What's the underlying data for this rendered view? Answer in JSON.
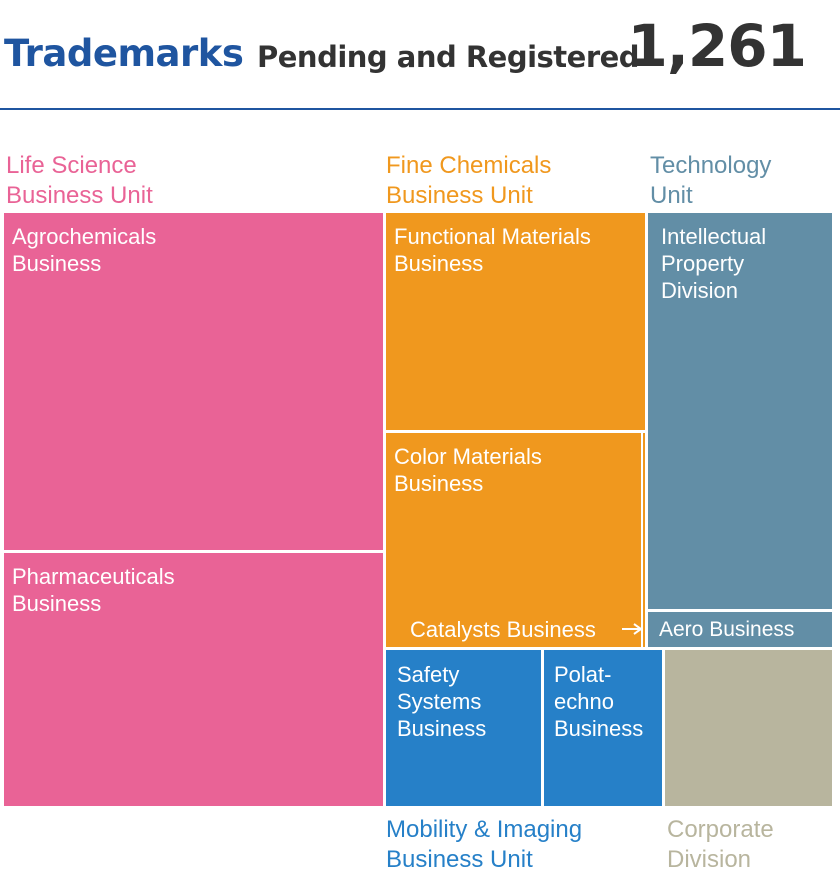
{
  "header": {
    "title": "Trademarks",
    "subtitle": "Pending and Registered",
    "total": "1,261"
  },
  "colors": {
    "life_science": "#e96396",
    "fine_chemicals": "#f0981e",
    "technology": "#628ea6",
    "mobility": "#2680c8",
    "corporate": "#b8b59e",
    "title_blue": "#1f55a0"
  },
  "units": {
    "life_science": "Life Science\nBusiness Unit",
    "fine_chemicals": "Fine Chemicals\nBusiness Unit",
    "technology": "Technology\nUnit",
    "mobility": "Mobility & Imaging\nBusiness Unit",
    "corporate": "Corporate\nDivision"
  },
  "tiles": {
    "agrochemicals": "Agrochemicals\nBusiness",
    "pharmaceuticals": "Pharmaceuticals\nBusiness",
    "functional_materials": "Functional Materials\nBusiness",
    "color_materials": "Color Materials\nBusiness",
    "catalysts": "Catalysts Business",
    "intellectual_property": "Intellectual\nProperty\nDivision",
    "aero": "Aero Business",
    "safety_systems": "Safety\nSystems\nBusiness",
    "polatechno": "Polat-\nechno\nBusiness"
  },
  "chart_data": {
    "type": "treemap",
    "title": "Trademarks",
    "subtitle": "Pending and Registered",
    "total": 1261,
    "groups": [
      {
        "name": "Life Science Business Unit",
        "children": [
          "Agrochemicals Business",
          "Pharmaceuticals Business"
        ]
      },
      {
        "name": "Fine Chemicals Business Unit",
        "children": [
          "Functional Materials Business",
          "Color Materials Business",
          "Catalysts Business"
        ]
      },
      {
        "name": "Technology Unit",
        "children": [
          "Intellectual Property Division",
          "Aero Business"
        ]
      },
      {
        "name": "Mobility & Imaging Business Unit",
        "children": [
          "Safety Systems Business",
          "Polatechno Business"
        ]
      },
      {
        "name": "Corporate Division",
        "children": []
      }
    ]
  }
}
